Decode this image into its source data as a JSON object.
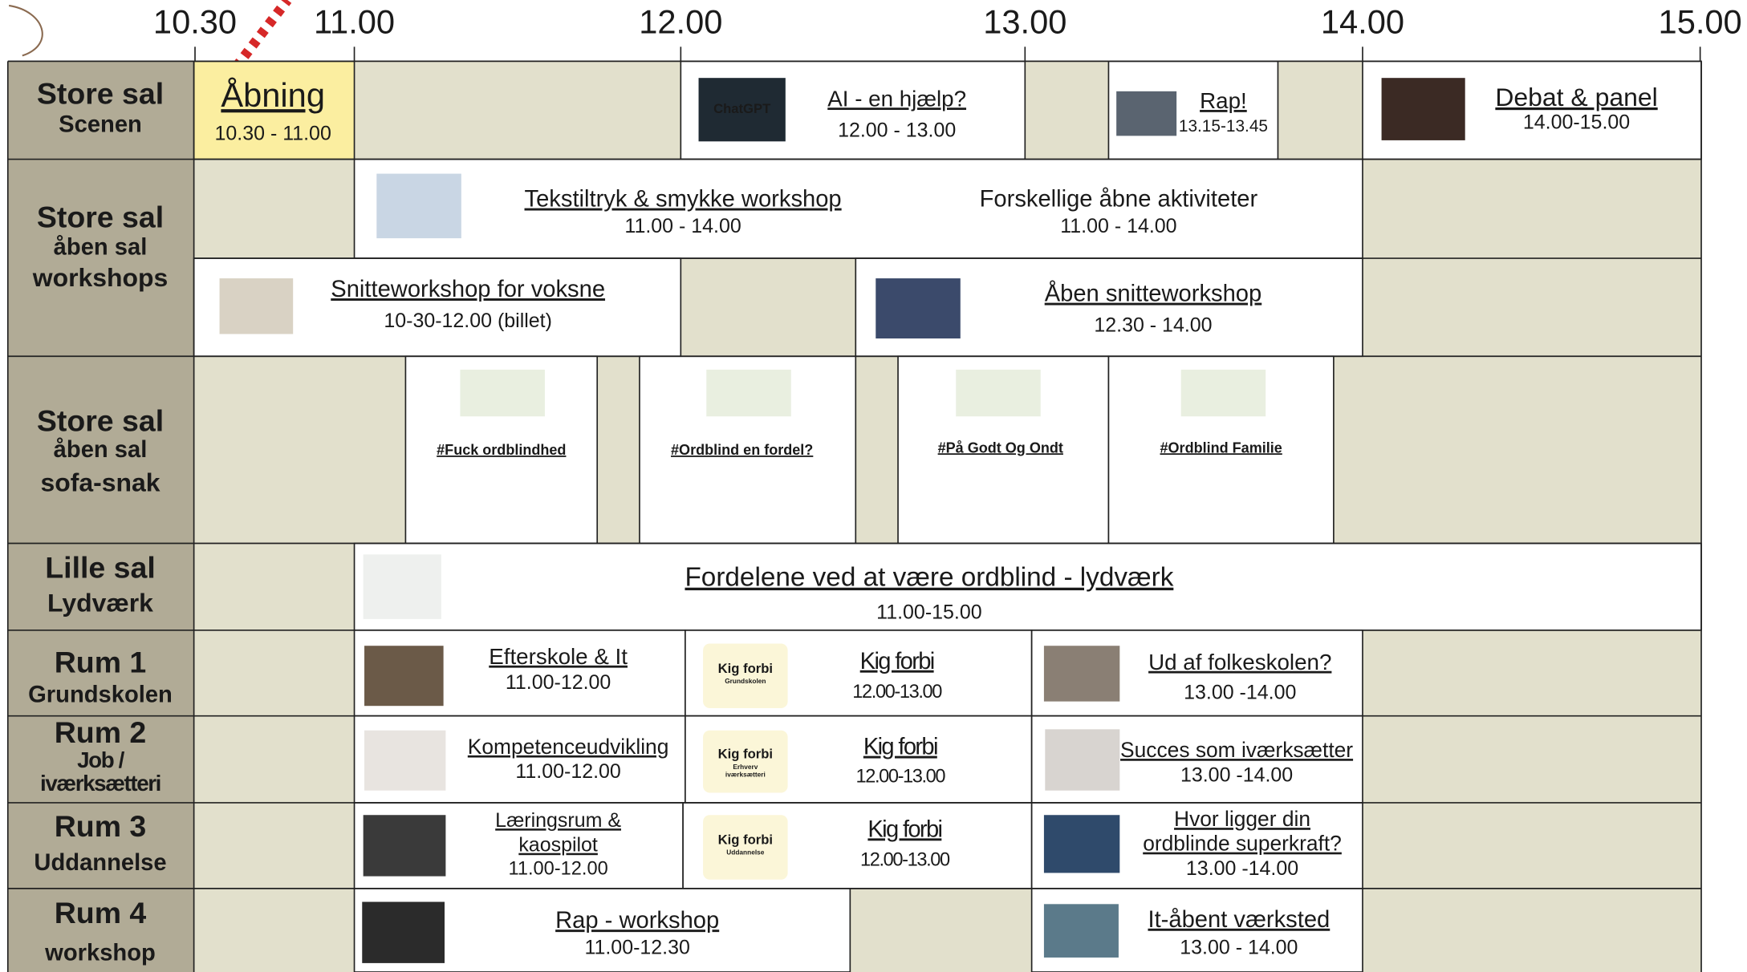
{
  "header": {
    "times": [
      "10.30",
      "11.00",
      "12.00",
      "13.00",
      "14.00",
      "15.00"
    ]
  },
  "rooms": [
    {
      "lines": [
        "Store sal",
        "Scenen"
      ]
    },
    {
      "lines": [
        "Store sal",
        "åben sal",
        "workshops"
      ]
    },
    {
      "lines": [
        "Store sal",
        "åben sal",
        "sofa-snak"
      ]
    },
    {
      "lines": [
        "Lille sal",
        "Lydværk"
      ]
    },
    {
      "lines": [
        "Rum 1",
        "Grundskolen"
      ]
    },
    {
      "lines": [
        "Rum 2",
        "Job /",
        "iværksætteri"
      ]
    },
    {
      "lines": [
        "Rum 3",
        "Uddannelse"
      ]
    },
    {
      "lines": [
        "Rum 4",
        "workshop"
      ]
    }
  ],
  "events": [
    {
      "title": "Åbning",
      "time": "10.30 - 11.00"
    },
    {
      "title": "AI - en hjælp?",
      "time": "12.00 - 13.00",
      "image_text": [
        "ChatGPT"
      ]
    },
    {
      "title": "Rap!",
      "time": "13.15-13.45"
    },
    {
      "title": "Debat & panel",
      "time": "14.00-15.00"
    },
    {
      "title": "Tekstiltryk & smykke workshop",
      "time": "11.00 - 14.00"
    },
    {
      "title": "Forskellige åbne aktiviteter",
      "time": "11.00 - 14.00"
    },
    {
      "title": "Snitteworkshop for voksne",
      "time": "10-30-12.00 (billet)"
    },
    {
      "title": "Åben snitteworkshop",
      "time": "12.30 - 14.00"
    },
    {
      "title": "#Fuck ordblindhed"
    },
    {
      "title": "#Ordblind en fordel?"
    },
    {
      "title": "#På Godt Og Ondt"
    },
    {
      "title": "#Ordblind Familie"
    },
    {
      "title": "Fordelene ved at være ordblind - lydværk",
      "time": "11.00-15.00"
    },
    {
      "title": "Efterskole & It",
      "time": "11.00-12.00"
    },
    {
      "title": "Kig forbi",
      "time": "12.00-13.00",
      "image_text": [
        "Kig forbi",
        "Grundskolen"
      ]
    },
    {
      "title": "Ud af folkeskolen?",
      "time": "13.00 -14.00"
    },
    {
      "title": "Kompetenceudvikling",
      "time": "11.00-12.00"
    },
    {
      "title": "Kig forbi",
      "time": "12.00-13.00",
      "image_text": [
        "Kig forbi",
        "Erhverv",
        "iværksætteri"
      ]
    },
    {
      "title": "Succes som iværksætter",
      "time": "13.00 -14.00"
    },
    {
      "title": [
        "Læringsrum &",
        "kaospilot"
      ],
      "time": "11.00-12.00"
    },
    {
      "title": "Kig forbi",
      "time": "12.00-13.00",
      "image_text": [
        "Kig forbi",
        "Uddannelse"
      ]
    },
    {
      "title": [
        "Hvor ligger din",
        "ordblinde superkraft?"
      ],
      "time": "13.00 -14.00"
    },
    {
      "title": "Rap - workshop",
      "time": "11.00-12.30"
    },
    {
      "title": "It-åbent værksted",
      "time": "13.00 - 14.00"
    }
  ]
}
